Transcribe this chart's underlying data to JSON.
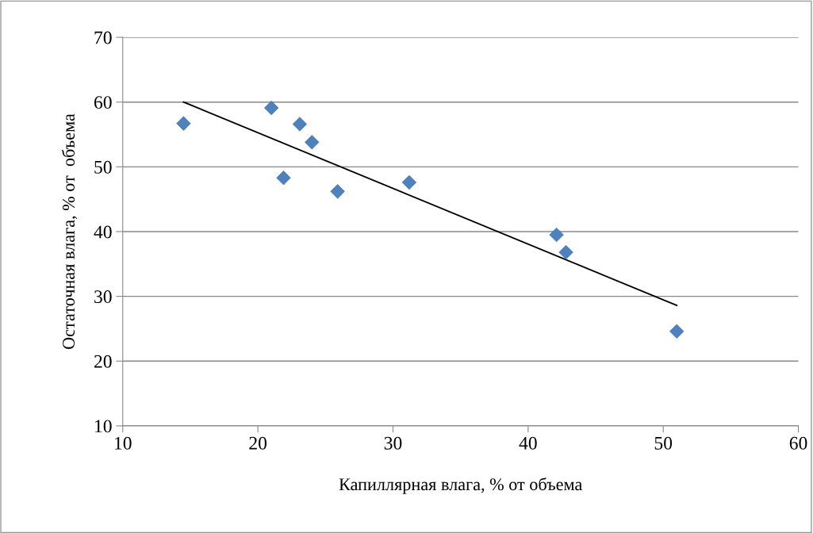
{
  "chart_data": {
    "type": "scatter",
    "xlabel": "Капиллярная влага, % от объема",
    "ylabel": "Остаточная влага, % от  объема",
    "xlim": [
      10,
      60
    ],
    "xticks": [
      10,
      20,
      30,
      40,
      50,
      60
    ],
    "ylim": [
      10,
      70
    ],
    "yticks": [
      10,
      20,
      30,
      40,
      50,
      60,
      70
    ],
    "grid": "y",
    "legend": false,
    "marker": "diamond",
    "series": [
      {
        "color": "#4f81bd",
        "x": [
          14.5,
          21.0,
          21.9,
          23.1,
          24.0,
          25.9,
          31.2,
          42.1,
          42.8,
          51.0
        ],
        "values": [
          56.7,
          59.1,
          48.3,
          56.6,
          53.8,
          46.2,
          47.6,
          39.5,
          36.8,
          24.6
        ]
      },
      {
        "type": "line",
        "color": "#000000",
        "marker": "none",
        "line_style": "solid",
        "x": [
          14.5,
          51.0
        ],
        "values": [
          60.0,
          28.6
        ]
      }
    ]
  }
}
